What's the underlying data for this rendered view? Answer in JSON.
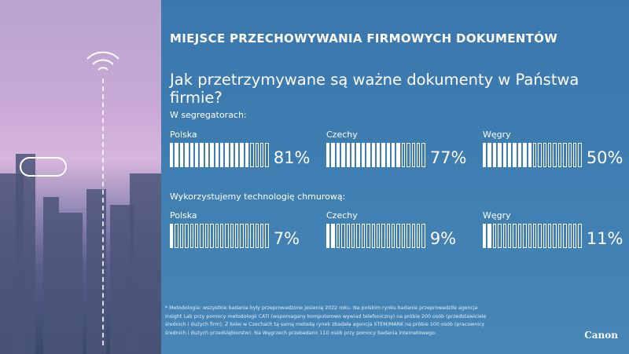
{
  "title": "MIEJSCE PRZECHOWYWANIA FIRMOWYCH DOKUMENTÓW",
  "question": "Jak przetrzymywane są ważne dokumenty w Państwa firmie?",
  "chart_data": [
    {
      "type": "bar",
      "title": "W segregatorach:",
      "categories": [
        "Polska",
        "Czechy",
        "Węgry"
      ],
      "values": [
        81,
        77,
        50
      ],
      "labels": [
        "81%",
        "77%",
        "50%"
      ],
      "ylim": [
        0,
        100
      ]
    },
    {
      "type": "bar",
      "title": "Wykorzystujemy technologię chmurową:",
      "categories": [
        "Polska",
        "Czechy",
        "Węgry"
      ],
      "values": [
        7,
        9,
        11
      ],
      "labels": [
        "7%",
        "9%",
        "11%"
      ],
      "ylim": [
        0,
        100
      ]
    }
  ],
  "footnote": "* Metodologia: wszystkie badania były przeprowadzone jesienią 2022 roku. Na polskim rynku badanie przeprowadziła agencja Insight Lab przy pomocy metodologii CATI (wspomagany komputerowo wywiad telefoniczny) na próbie 200 osób (przedstawiciele średnich i dużych firm). Z kolei w Czechach tą samą metodą rynek zbadała agencja STEM/MARK na próbie 100 osób (pracownicy średnich i dużych przedsiębiorstw). Na Węgrzech przebadano 110 osób przy pomocy badania internetowego.",
  "logo": "Canon",
  "colors": {
    "panel": "#3f7fb2",
    "bar": "#ffffff"
  }
}
